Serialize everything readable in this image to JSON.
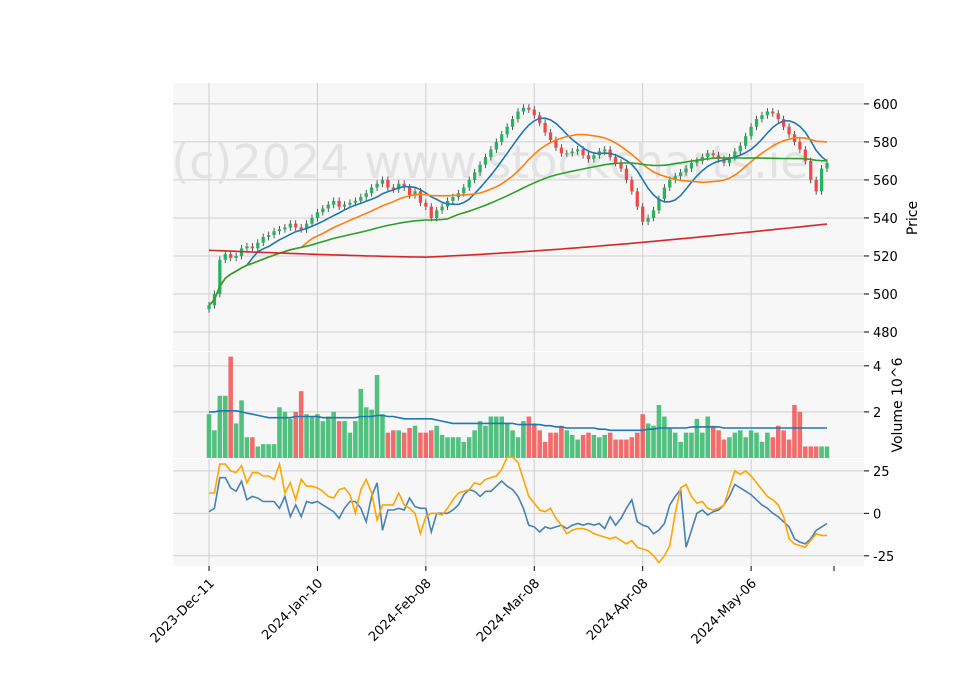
{
  "chart_data": [
    {
      "type": "candlestick",
      "watermark": "(c)2024 www.stockcharts.ie",
      "ylabel": "Price",
      "ylim": [
        470,
        611
      ],
      "yticks": [
        480,
        500,
        520,
        540,
        560,
        580,
        600
      ],
      "grid": true,
      "x_tick_labels": [
        "2023-Dec-11",
        "2024-Jan-10",
        "2024-Feb-08",
        "2024-Mar-08",
        "2024-Apr-08",
        "2024-May-06"
      ],
      "x_tick_index": [
        0,
        20,
        40,
        60,
        80,
        100
      ],
      "colors": {
        "up": "#26b35f",
        "down": "#f04848",
        "ma_short": "#1f77b4",
        "ma_mid": "#ff7f0e",
        "ma_long": "#2ca02c",
        "ma_200": "#d62728"
      },
      "close": [
        494,
        500,
        518,
        521,
        519,
        520,
        524,
        525,
        524,
        527,
        530,
        531,
        533,
        534,
        535,
        537,
        535,
        534,
        537,
        540,
        543,
        545,
        547,
        549,
        546,
        547,
        548,
        549,
        551,
        553,
        556,
        558,
        560,
        556,
        555,
        558,
        556,
        552,
        554,
        548,
        546,
        540,
        544,
        546,
        549,
        551,
        553,
        556,
        560,
        564,
        568,
        572,
        576,
        580,
        584,
        588,
        592,
        596,
        598,
        597,
        594,
        590,
        585,
        581,
        577,
        574,
        574,
        575,
        576,
        573,
        571,
        573,
        575,
        576,
        572,
        569,
        566,
        560,
        554,
        546,
        538,
        540,
        544,
        550,
        556,
        560,
        562,
        564,
        566,
        569,
        570,
        572,
        574,
        573,
        571,
        569,
        572,
        575,
        578,
        583,
        588,
        592,
        594,
        596,
        595,
        592,
        588,
        584,
        580,
        576,
        570,
        560,
        554,
        566,
        569
      ],
      "volume_ylabel": "Volume  10^6",
      "volume_ylim": [
        0,
        4.6
      ],
      "volume_yticks": [
        2,
        4
      ],
      "volume": [
        1.9,
        1.2,
        2.7,
        2.7,
        4.4,
        1.5,
        2.5,
        0.9,
        0.9,
        0.5,
        0.6,
        0.6,
        0.6,
        2.2,
        2.0,
        1.7,
        2.0,
        2.9,
        1.9,
        1.8,
        1.9,
        1.6,
        1.8,
        2.0,
        1.6,
        1.6,
        1.1,
        1.6,
        3.0,
        2.2,
        2.1,
        3.6,
        1.9,
        1.1,
        1.2,
        1.2,
        1.1,
        1.3,
        1.4,
        1.1,
        1.1,
        1.2,
        1.4,
        1.0,
        0.9,
        0.9,
        0.9,
        0.7,
        0.9,
        1.2,
        1.6,
        1.4,
        1.8,
        1.8,
        1.8,
        1.5,
        1.2,
        0.9,
        1.6,
        1.8,
        1.5,
        1.2,
        0.7,
        1.1,
        1.1,
        1.4,
        1.2,
        1.0,
        0.8,
        1.0,
        1.1,
        1.0,
        0.9,
        1.0,
        1.1,
        0.8,
        0.8,
        0.8,
        0.9,
        1.1,
        1.9,
        1.5,
        1.4,
        2.3,
        1.8,
        1.3,
        1.1,
        0.7,
        1.1,
        1.1,
        1.7,
        1.1,
        1.8,
        1.4,
        1.2,
        0.8,
        0.9,
        1.1,
        1.2,
        0.9,
        1.2,
        1.1,
        0.7,
        1.1,
        0.9,
        1.4,
        1.2,
        0.8,
        2.3,
        2.0,
        0.5,
        0.5,
        0.5,
        0.5,
        0.5
      ],
      "volume_ma": [
        2.0,
        2.0,
        2.05,
        2.05,
        2.05,
        2.05,
        2.0,
        1.95,
        1.9,
        1.85,
        1.8,
        1.75,
        1.75,
        1.75,
        1.75,
        1.75,
        1.8,
        1.8,
        1.8,
        1.8,
        1.8,
        1.75,
        1.75,
        1.75,
        1.75,
        1.75,
        1.75,
        1.75,
        1.8,
        1.8,
        1.8,
        1.85,
        1.85,
        1.8,
        1.8,
        1.75,
        1.7,
        1.7,
        1.7,
        1.7,
        1.7,
        1.7,
        1.65,
        1.6,
        1.55,
        1.5,
        1.5,
        1.5,
        1.5,
        1.5,
        1.5,
        1.5,
        1.5,
        1.5,
        1.5,
        1.5,
        1.5,
        1.45,
        1.45,
        1.45,
        1.45,
        1.45,
        1.4,
        1.4,
        1.35,
        1.35,
        1.3,
        1.3,
        1.3,
        1.3,
        1.3,
        1.3,
        1.25,
        1.25,
        1.2,
        1.2,
        1.2,
        1.2,
        1.2,
        1.2,
        1.2,
        1.25,
        1.25,
        1.3,
        1.3,
        1.3,
        1.3,
        1.3,
        1.3,
        1.35,
        1.35,
        1.35,
        1.35,
        1.35,
        1.35,
        1.3,
        1.3,
        1.3,
        1.3,
        1.3,
        1.3,
        1.3,
        1.3,
        1.3,
        1.3,
        1.3,
        1.3,
        1.3,
        1.3,
        1.3,
        1.3,
        1.3,
        1.3,
        1.3,
        1.3
      ],
      "osc_ylim": [
        -31,
        32
      ],
      "osc_yticks": [
        -25,
        0,
        25
      ],
      "osc_series": [
        {
          "color": "#4682b4",
          "values": [
            1,
            3,
            21,
            21,
            15,
            13,
            19,
            8,
            10,
            9,
            7,
            7,
            7,
            3,
            10,
            -2,
            5,
            -2,
            7,
            6,
            7,
            5,
            3,
            1,
            -3,
            3,
            7,
            7,
            3,
            -5,
            10,
            18,
            -10,
            2,
            2,
            3,
            2,
            9,
            4,
            3,
            3,
            -11,
            0,
            0,
            0,
            2,
            5,
            11,
            14,
            13,
            10,
            13,
            13,
            16,
            19,
            16,
            14,
            10,
            3,
            -7,
            -8,
            -11,
            -8,
            -9,
            -8,
            -7,
            -9,
            -7,
            -6,
            -7,
            -6,
            -7,
            -6,
            -9,
            -2,
            -7,
            -3,
            3,
            8,
            -5,
            -7,
            -8,
            -12,
            -10,
            -6,
            5,
            10,
            14,
            -20,
            -10,
            0,
            2,
            -1,
            1,
            2,
            5,
            10,
            17,
            15,
            13,
            11,
            8,
            5,
            3,
            0,
            -2,
            -5,
            -8,
            -15,
            -17,
            -18,
            -15,
            -10,
            -8,
            -6
          ]
        },
        {
          "color": "#ffa500",
          "values": [
            12,
            12,
            29,
            29,
            25,
            24,
            28,
            18,
            24,
            24,
            22,
            22,
            20,
            29,
            12,
            18,
            8,
            20,
            16,
            16,
            15,
            13,
            10,
            9,
            14,
            15,
            11,
            0,
            14,
            20,
            12,
            -4,
            5,
            5,
            5,
            12,
            5,
            3,
            0,
            -12,
            -2,
            0,
            0,
            -1,
            3,
            8,
            12,
            13,
            14,
            18,
            17,
            20,
            21,
            22,
            26,
            33,
            33,
            30,
            20,
            10,
            6,
            2,
            1,
            3,
            -3,
            -7,
            -12,
            -10,
            -9,
            -9,
            -10,
            -12,
            -13,
            -14,
            -15,
            -14,
            -16,
            -18,
            -16,
            -20,
            -21,
            -22,
            -25,
            -29,
            -25,
            -19,
            0,
            15,
            17,
            10,
            6,
            7,
            3,
            2,
            3,
            5,
            15,
            25,
            23,
            25,
            22,
            18,
            14,
            10,
            8,
            5,
            -2,
            -15,
            -18,
            -19,
            -20,
            -16,
            -12,
            -13,
            -13
          ]
        }
      ]
    }
  ]
}
